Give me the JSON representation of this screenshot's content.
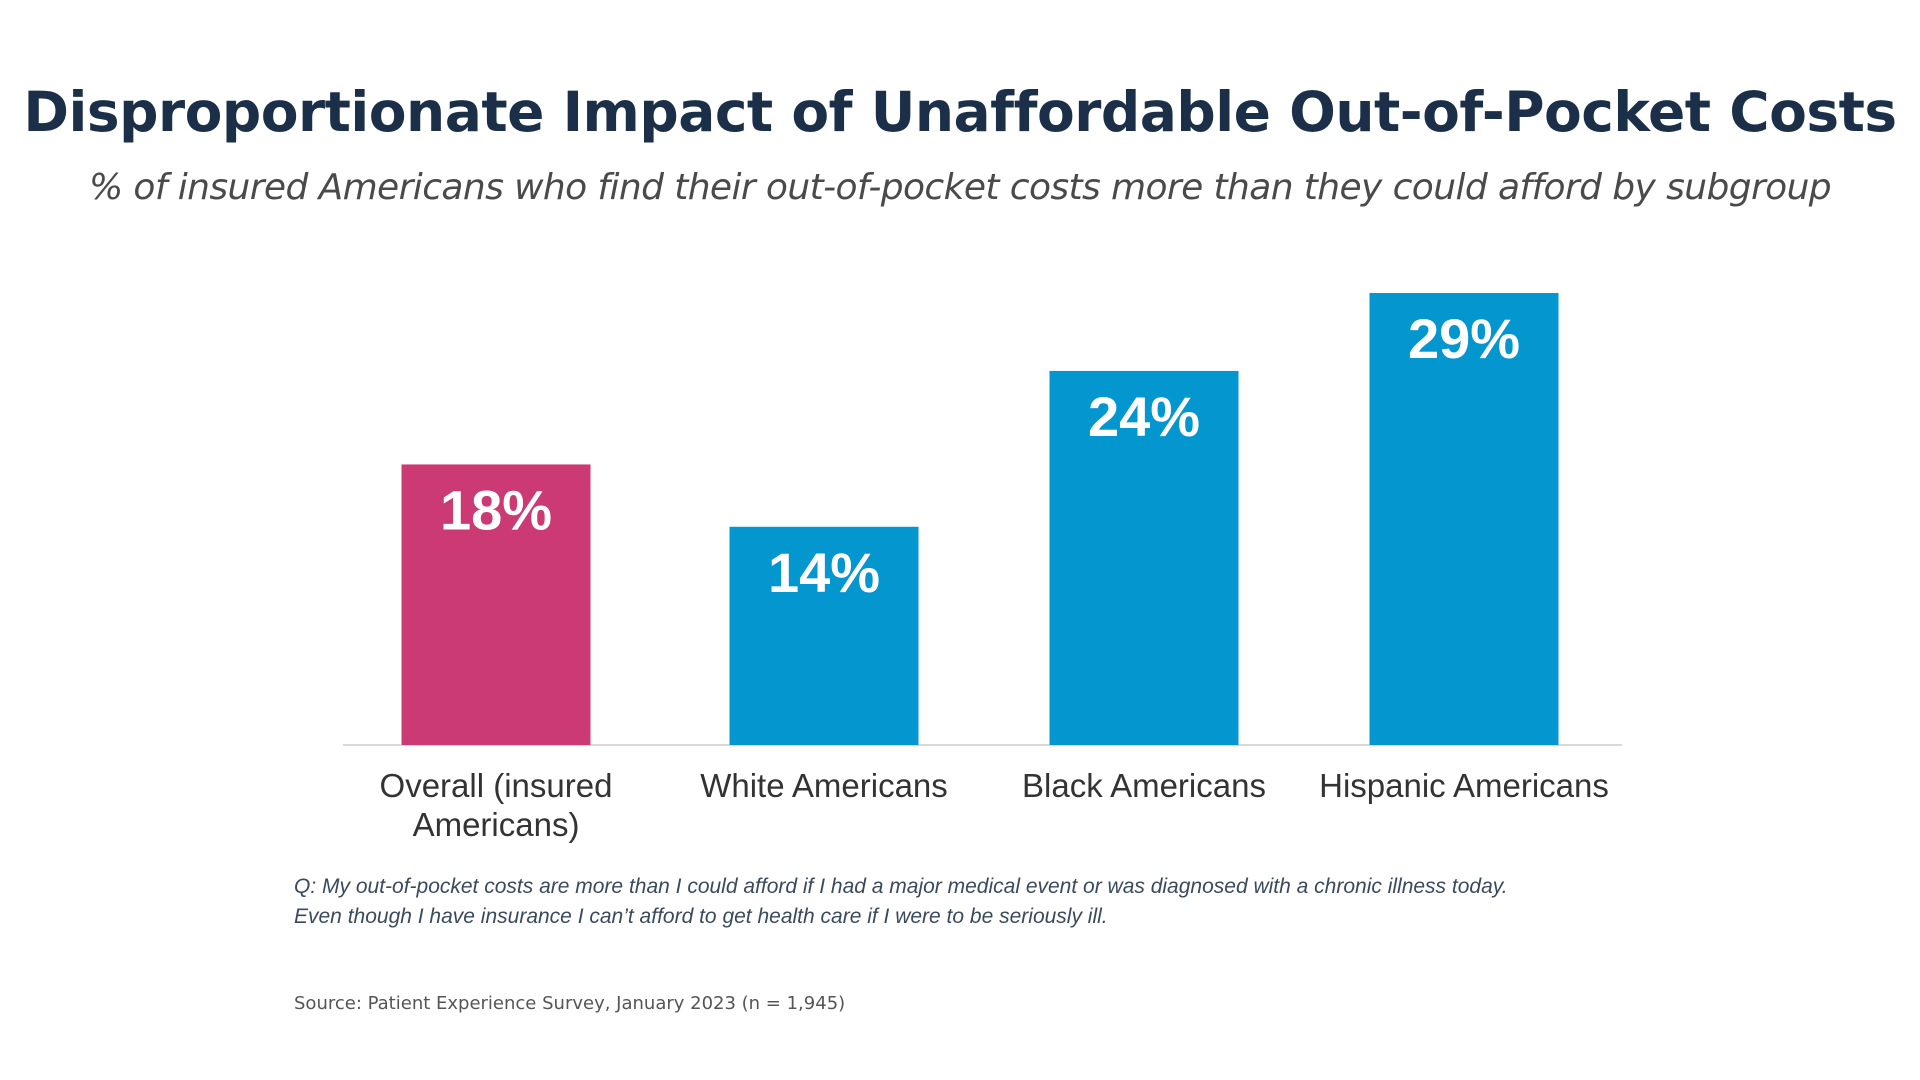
{
  "title": "Disproportionate Impact of Unaffordable Out-of-Pocket Costs",
  "subtitle": "% of insured Americans who find their out-of-pocket costs more than they could afford by subgroup",
  "question_lines": [
    "Q: My out-of-pocket costs are more than I could afford if I had a major medical event or was diagnosed with a chronic illness today.",
    "Even though I have insurance I can’t afford to get health care if I were to be seriously ill."
  ],
  "source": "Source: Patient Experience Survey, January 2023 (n = 1,945)",
  "colors": {
    "highlight": "#cc3a74",
    "bar": "#0496cf",
    "baseline": "#d9d9d9",
    "bar_label": "#ffffff",
    "category_label": "#333333"
  },
  "chart_data": {
    "type": "bar",
    "categories": [
      [
        "Overall (insured",
        "Americans)"
      ],
      [
        "White Americans"
      ],
      [
        "Black Americans"
      ],
      [
        "Hispanic Americans"
      ]
    ],
    "values": [
      18,
      14,
      24,
      29
    ],
    "data_labels": [
      "18%",
      "14%",
      "24%",
      "29%"
    ],
    "bar_colors": [
      "#cc3a74",
      "#0496cf",
      "#0496cf",
      "#0496cf"
    ],
    "ylim": [
      0,
      29
    ],
    "grid": false,
    "legend": false,
    "y_axis_visible": false
  }
}
